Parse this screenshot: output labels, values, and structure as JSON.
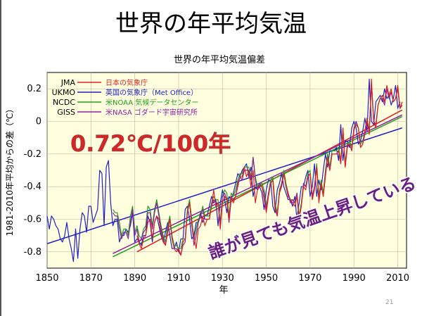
{
  "slide": {
    "title": "世界の年平均気温",
    "page_number": "21"
  },
  "annotations": {
    "trend_rate": "0.72℃/100年",
    "comment": "誰が見ても気温上昇している"
  },
  "colors": {
    "plot_bg": "#ffffe0",
    "JMA": "#e02020",
    "UKMO": "#2020c8",
    "NCDC": "#20a020",
    "GISS": "#9020a0",
    "annotation_red": "#d02828",
    "annotation_shadow": "#9a9a9a",
    "comment_purple": "#6a1e82"
  },
  "chart_data": {
    "type": "line",
    "title": "世界の年平均気温偏差",
    "xlabel": "年",
    "ylabel": "1981-2010年平均からの差（℃）",
    "xlim": [
      1850,
      2014
    ],
    "ylim": [
      -0.9,
      0.3
    ],
    "xticks": [
      1850,
      1870,
      1890,
      1910,
      1930,
      1950,
      1970,
      1990,
      2010
    ],
    "yticks": [
      0.2,
      0,
      -0.2,
      -0.4,
      -0.6,
      -0.8
    ],
    "grid": true,
    "legend_position": "top-left",
    "series": [
      {
        "code": "JMA",
        "name": "日本の気象庁",
        "start": 1891,
        "values": [
          -0.7,
          -0.75,
          -0.78,
          -0.72,
          -0.7,
          -0.62,
          -0.6,
          -0.72,
          -0.62,
          -0.58,
          -0.6,
          -0.68,
          -0.74,
          -0.76,
          -0.68,
          -0.6,
          -0.72,
          -0.78,
          -0.8,
          -0.78,
          -0.82,
          -0.74,
          -0.72,
          -0.56,
          -0.5,
          -0.64,
          -0.7,
          -0.78,
          -0.66,
          -0.64,
          -0.58,
          -0.64,
          -0.6,
          -0.6,
          -0.52,
          -0.42,
          -0.52,
          -0.5,
          -0.66,
          -0.5,
          -0.46,
          -0.48,
          -0.6,
          -0.46,
          -0.5,
          -0.46,
          -0.38,
          -0.34,
          -0.34,
          -0.28,
          -0.34,
          -0.3,
          -0.4,
          -0.3,
          -0.5,
          -0.42,
          -0.4,
          -0.4,
          -0.48,
          -0.56,
          -0.46,
          -0.38,
          -0.36,
          -0.54,
          -0.58,
          -0.44,
          -0.38,
          -0.32,
          -0.4,
          -0.46,
          -0.48,
          -0.5,
          -0.52,
          -0.46,
          -0.6,
          -0.52,
          -0.4,
          -0.42,
          -0.34,
          -0.32,
          -0.48,
          -0.42,
          -0.28,
          -0.5,
          -0.38,
          -0.46,
          -0.34,
          -0.22,
          -0.3,
          -0.2,
          -0.2,
          -0.2,
          -0.18,
          -0.26,
          -0.04,
          -0.28,
          -0.14,
          -0.14,
          -0.18,
          -0.04,
          -0.02,
          -0.04,
          -0.16,
          -0.14,
          -0.06,
          0.02,
          -0.08,
          0.26,
          0.0,
          -0.04,
          0.1,
          0.14,
          0.16,
          0.12,
          0.22,
          0.16,
          0.2,
          0.12,
          0.14,
          0.22,
          0.08,
          0.12
        ]
      },
      {
        "code": "UKMO",
        "name": "英国の気象庁（Met Office）",
        "start": 1850,
        "values": [
          -0.58,
          -0.66,
          -0.58,
          -0.6,
          -0.64,
          -0.66,
          -0.72,
          -0.74,
          -0.7,
          -0.62,
          -0.72,
          -0.78,
          -0.86,
          -0.66,
          -0.84,
          -0.66,
          -0.56,
          -0.58,
          -0.68,
          -0.52,
          -0.52,
          -0.62,
          -0.58,
          -0.54,
          -0.3,
          -0.32,
          -0.64,
          -0.28,
          -0.24,
          -0.5,
          -0.64,
          -0.6,
          -0.6,
          -0.74,
          -0.7,
          -0.7,
          -0.66,
          -0.68,
          -0.64,
          -0.56,
          -0.74,
          -0.72,
          -0.74,
          -0.76,
          -0.7,
          -0.7,
          -0.58,
          -0.62,
          -0.74,
          -0.62,
          -0.58,
          -0.64,
          -0.7,
          -0.74,
          -0.68,
          -0.62,
          -0.7,
          -0.78,
          -0.78,
          -0.74,
          -0.8,
          -0.72,
          -0.72,
          -0.54,
          -0.52,
          -0.6,
          -0.72,
          -0.7,
          -0.62,
          -0.62,
          -0.56,
          -0.62,
          -0.58,
          -0.58,
          -0.52,
          -0.46,
          -0.5,
          -0.48,
          -0.64,
          -0.5,
          -0.42,
          -0.48,
          -0.56,
          -0.46,
          -0.48,
          -0.44,
          -0.38,
          -0.32,
          -0.34,
          -0.3,
          -0.28,
          -0.26,
          -0.34,
          -0.28,
          -0.46,
          -0.4,
          -0.42,
          -0.4,
          -0.44,
          -0.54,
          -0.42,
          -0.36,
          -0.36,
          -0.52,
          -0.56,
          -0.42,
          -0.38,
          -0.32,
          -0.4,
          -0.44,
          -0.48,
          -0.48,
          -0.52,
          -0.46,
          -0.6,
          -0.5,
          -0.4,
          -0.4,
          -0.34,
          -0.3,
          -0.46,
          -0.4,
          -0.26,
          -0.46,
          -0.36,
          -0.42,
          -0.3,
          -0.2,
          -0.28,
          -0.18,
          -0.18,
          -0.18,
          -0.16,
          -0.24,
          -0.02,
          -0.24,
          -0.12,
          -0.12,
          -0.16,
          -0.04,
          0.0,
          -0.04,
          -0.14,
          -0.12,
          -0.06,
          0.02,
          -0.06,
          0.26,
          0.0,
          -0.02,
          0.12,
          0.14,
          0.16,
          0.12,
          0.2,
          0.14,
          0.16,
          0.1,
          0.14,
          0.22,
          0.08,
          0.12
        ]
      },
      {
        "code": "NCDC",
        "name": "米NOAA 気候データセンター",
        "start": 1880,
        "values": [
          -0.54,
          -0.56,
          -0.56,
          -0.62,
          -0.7,
          -0.66,
          -0.66,
          -0.7,
          -0.58,
          -0.52,
          -0.68,
          -0.64,
          -0.7,
          -0.72,
          -0.66,
          -0.64,
          -0.52,
          -0.54,
          -0.64,
          -0.54,
          -0.48,
          -0.56,
          -0.64,
          -0.7,
          -0.74,
          -0.64,
          -0.58,
          -0.7,
          -0.76,
          -0.76,
          -0.78,
          -0.78,
          -0.72,
          -0.72,
          -0.54,
          -0.48,
          -0.6,
          -0.72,
          -0.66,
          -0.6,
          -0.58,
          -0.52,
          -0.58,
          -0.58,
          -0.58,
          -0.5,
          -0.46,
          -0.48,
          -0.48,
          -0.62,
          -0.46,
          -0.42,
          -0.44,
          -0.58,
          -0.44,
          -0.46,
          -0.42,
          -0.36,
          -0.32,
          -0.32,
          -0.28,
          -0.28,
          -0.28,
          -0.34,
          -0.22,
          -0.34,
          -0.4,
          -0.38,
          -0.38,
          -0.42,
          -0.52,
          -0.44,
          -0.36,
          -0.34,
          -0.5,
          -0.56,
          -0.42,
          -0.38,
          -0.3,
          -0.38,
          -0.44,
          -0.48,
          -0.48,
          -0.5,
          -0.44,
          -0.58,
          -0.5,
          -0.38,
          -0.4,
          -0.32,
          -0.3,
          -0.46,
          -0.4,
          -0.26,
          -0.46,
          -0.36,
          -0.44,
          -0.3,
          -0.2,
          -0.28,
          -0.18,
          -0.18,
          -0.18,
          -0.16,
          -0.24,
          -0.04,
          -0.26,
          -0.14,
          -0.12,
          -0.16,
          -0.04,
          0.0,
          -0.04,
          -0.14,
          -0.12,
          -0.06,
          0.02,
          -0.06,
          0.24,
          0.0,
          -0.02,
          0.1,
          0.14,
          0.16,
          0.12,
          0.2,
          0.16,
          0.18,
          0.12,
          0.14,
          0.22,
          0.08,
          0.12
        ]
      },
      {
        "code": "GISS",
        "name": "米NASA ゴダード宇宙研究所",
        "start": 1880,
        "values": [
          -0.56,
          -0.58,
          -0.58,
          -0.66,
          -0.72,
          -0.68,
          -0.68,
          -0.72,
          -0.62,
          -0.54,
          -0.7,
          -0.66,
          -0.74,
          -0.72,
          -0.68,
          -0.66,
          -0.56,
          -0.56,
          -0.66,
          -0.56,
          -0.5,
          -0.58,
          -0.66,
          -0.72,
          -0.76,
          -0.66,
          -0.6,
          -0.72,
          -0.78,
          -0.78,
          -0.8,
          -0.82,
          -0.76,
          -0.74,
          -0.56,
          -0.5,
          -0.62,
          -0.76,
          -0.7,
          -0.62,
          -0.58,
          -0.54,
          -0.6,
          -0.6,
          -0.6,
          -0.52,
          -0.48,
          -0.5,
          -0.5,
          -0.64,
          -0.46,
          -0.44,
          -0.48,
          -0.62,
          -0.48,
          -0.48,
          -0.46,
          -0.4,
          -0.34,
          -0.36,
          -0.3,
          -0.3,
          -0.3,
          -0.36,
          -0.22,
          -0.36,
          -0.42,
          -0.38,
          -0.4,
          -0.44,
          -0.54,
          -0.44,
          -0.38,
          -0.36,
          -0.52,
          -0.58,
          -0.44,
          -0.4,
          -0.32,
          -0.4,
          -0.44,
          -0.5,
          -0.48,
          -0.5,
          -0.44,
          -0.6,
          -0.52,
          -0.38,
          -0.4,
          -0.34,
          -0.32,
          -0.46,
          -0.4,
          -0.28,
          -0.48,
          -0.38,
          -0.46,
          -0.32,
          -0.22,
          -0.3,
          -0.2,
          -0.2,
          -0.2,
          -0.18,
          -0.26,
          -0.06,
          -0.28,
          -0.16,
          -0.14,
          -0.18,
          -0.06,
          0.0,
          -0.04,
          -0.16,
          -0.14,
          -0.08,
          0.0,
          -0.06,
          0.22,
          0.0,
          -0.02,
          0.1,
          0.14,
          0.14,
          0.1,
          0.2,
          0.14,
          0.18,
          0.12,
          0.14,
          0.2,
          0.08,
          0.1
        ]
      }
    ],
    "trend_lines": [
      {
        "code": "JMA",
        "x": [
          1891,
          2012
        ],
        "y": [
          -0.8,
          0.07
        ]
      },
      {
        "code": "UKMO",
        "x": [
          1850,
          2012
        ],
        "y": [
          -0.75,
          -0.04
        ]
      },
      {
        "code": "NCDC",
        "x": [
          1880,
          2012
        ],
        "y": [
          -0.83,
          0.03
        ]
      },
      {
        "code": "GISS",
        "x": [
          1880,
          2012
        ],
        "y": [
          -0.81,
          0.04
        ]
      }
    ]
  }
}
